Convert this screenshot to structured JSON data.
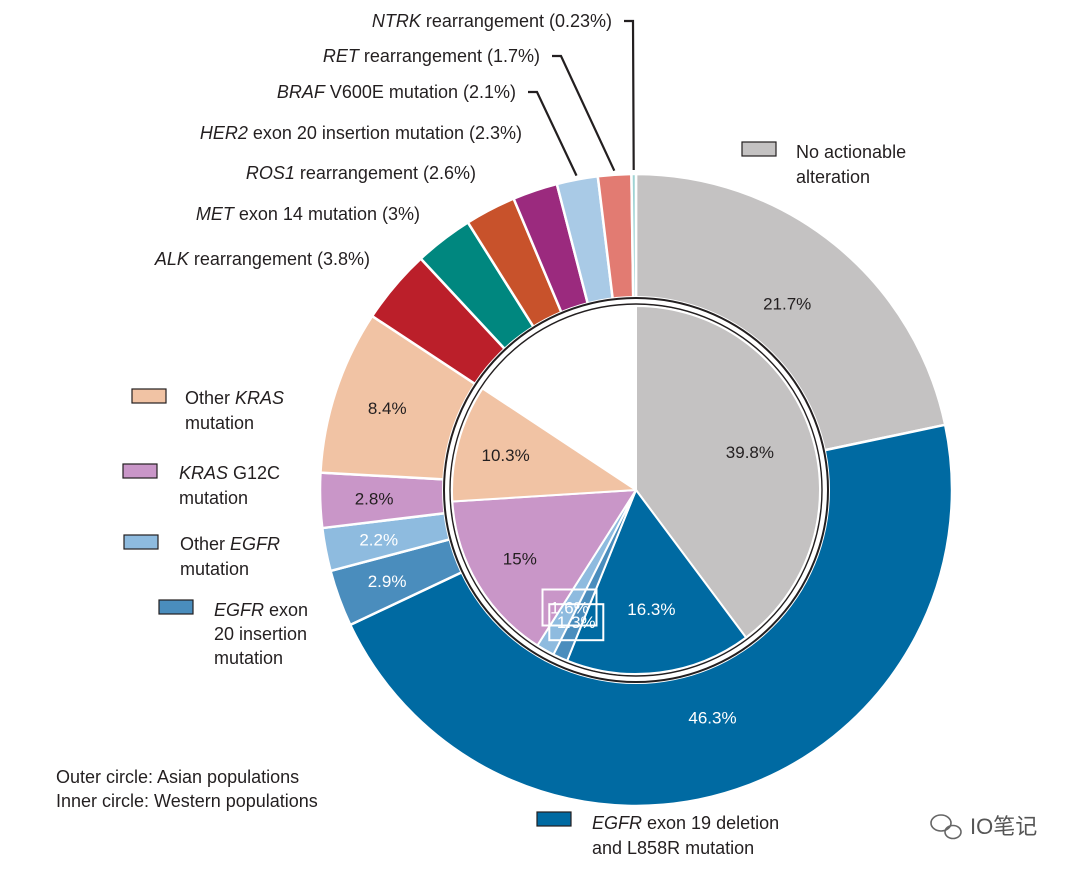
{
  "chart_data": {
    "type": "pie",
    "variant": "nested-donut",
    "title": "",
    "rings": [
      {
        "name": "Outer circle: Asian populations",
        "slices": [
          {
            "key": "no_actionable",
            "value": 21.7,
            "label": "21.7%"
          },
          {
            "key": "egfr_19_l858r",
            "value": 46.3,
            "label": "46.3%"
          },
          {
            "key": "egfr_ex20",
            "value": 2.9,
            "label": "2.9%"
          },
          {
            "key": "other_egfr",
            "value": 2.2,
            "label": "2.2%"
          },
          {
            "key": "kras_g12c",
            "value": 2.8,
            "label": "2.8%"
          },
          {
            "key": "other_kras",
            "value": 8.4,
            "label": "8.4%"
          },
          {
            "key": "alk",
            "value": 3.8
          },
          {
            "key": "met",
            "value": 3.0
          },
          {
            "key": "ros1",
            "value": 2.6
          },
          {
            "key": "her2",
            "value": 2.3
          },
          {
            "key": "braf",
            "value": 2.1
          },
          {
            "key": "ret",
            "value": 1.7
          },
          {
            "key": "ntrk",
            "value": 0.23
          }
        ]
      },
      {
        "name": "Inner circle: Western populations",
        "slices": [
          {
            "key": "no_actionable",
            "value": 39.8,
            "label": "39.8%"
          },
          {
            "key": "egfr_19_l858r",
            "value": 16.3,
            "label": "16.3%"
          },
          {
            "key": "egfr_ex20",
            "value": 1.3,
            "label": "1.3%"
          },
          {
            "key": "other_egfr",
            "value": 1.6,
            "label": "1.6%"
          },
          {
            "key": "kras_g12c",
            "value": 15,
            "label": "15%"
          },
          {
            "key": "other_kras",
            "value": 10.3,
            "label": "10.3%"
          },
          {
            "key": "gap",
            "value": 15.7
          }
        ]
      }
    ],
    "categories": {
      "no_actionable": {
        "color": "#c4c2c2",
        "legend": [
          "No actionable",
          "alteration"
        ]
      },
      "egfr_19_l858r": {
        "color": "#006aa2",
        "legend": [
          "EGFR exon 19 deletion",
          "and L858R mutation"
        ],
        "italic": "EGFR"
      },
      "egfr_ex20": {
        "color": "#4a8dbd",
        "legend": [
          "EGFR exon",
          "20 insertion",
          "mutation"
        ],
        "italic": "EGFR"
      },
      "other_egfr": {
        "color": "#8ebbdf",
        "legend": [
          "Other EGFR",
          "mutation"
        ],
        "italic": "EGFR"
      },
      "kras_g12c": {
        "color": "#c996c8",
        "legend": [
          "KRAS G12C",
          "mutation"
        ],
        "italic": "KRAS"
      },
      "other_kras": {
        "color": "#f1c3a4",
        "legend": [
          "Other KRAS",
          "mutation"
        ],
        "italic": "KRAS"
      },
      "alk": {
        "color": "#bb1f2a",
        "callout": "ALK rearrangement (3.8%)",
        "italic": "ALK"
      },
      "met": {
        "color": "#00877f",
        "callout": "MET exon 14 mutation (3%)",
        "italic": "MET"
      },
      "ros1": {
        "color": "#c8522b",
        "callout": "ROS1 rearrangement (2.6%)",
        "italic": "ROS1"
      },
      "her2": {
        "color": "#9b2a7e",
        "callout": "HER2 exon 20 insertion mutation (2.3%)",
        "italic": "HER2"
      },
      "braf": {
        "color": "#a9cae6",
        "callout": "BRAF V600E mutation (2.1%)",
        "italic": "BRAF"
      },
      "ret": {
        "color": "#e27b72",
        "callout": "RET rearrangement (1.7%)",
        "italic": "RET"
      },
      "ntrk": {
        "color": "#9fd3d3",
        "callout": "NTRK rearrangement (0.23%)",
        "italic": "NTRK"
      }
    },
    "notes": [
      "Outer circle: Asian populations",
      "Inner circle: Western populations"
    ],
    "watermark": "IO笔记"
  }
}
